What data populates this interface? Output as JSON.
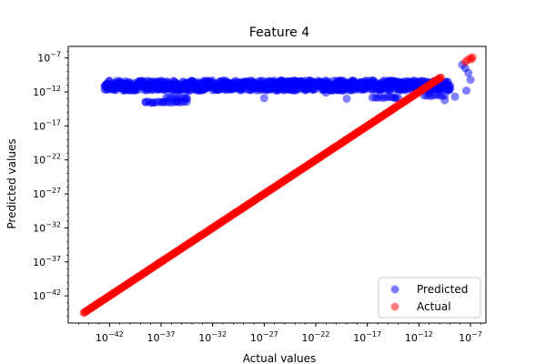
{
  "chart_data": {
    "type": "scatter",
    "title": "Feature 4",
    "xlabel": "Actual values",
    "ylabel": "Predicted values",
    "xscale": "log",
    "yscale": "log",
    "xlim_exp": [
      -46,
      -5.5
    ],
    "ylim_exp": [
      -46,
      -5.3
    ],
    "xticks": [
      {
        "exp": -42,
        "base": "10",
        "sup": "−42"
      },
      {
        "exp": -37,
        "base": "10",
        "sup": "−37"
      },
      {
        "exp": -32,
        "base": "10",
        "sup": "−32"
      },
      {
        "exp": -27,
        "base": "10",
        "sup": "−27"
      },
      {
        "exp": -22,
        "base": "10",
        "sup": "−22"
      },
      {
        "exp": -17,
        "base": "10",
        "sup": "−17"
      },
      {
        "exp": -12,
        "base": "10",
        "sup": "−12"
      },
      {
        "exp": -7,
        "base": "10",
        "sup": "−7"
      }
    ],
    "yticks": [
      {
        "exp": -42,
        "base": "10",
        "sup": "−42"
      },
      {
        "exp": -37,
        "base": "10",
        "sup": "−37"
      },
      {
        "exp": -32,
        "base": "10",
        "sup": "−32"
      },
      {
        "exp": -27,
        "base": "10",
        "sup": "−27"
      },
      {
        "exp": -22,
        "base": "10",
        "sup": "−22"
      },
      {
        "exp": -17,
        "base": "10",
        "sup": "−17"
      },
      {
        "exp": -12,
        "base": "10",
        "sup": "−12"
      },
      {
        "exp": -7,
        "base": "10",
        "sup": "−7"
      }
    ],
    "grid": false,
    "legend": {
      "placement": "lower-right",
      "entries": [
        {
          "name": "Predicted",
          "color": "#0000ff"
        },
        {
          "name": "Actual",
          "color": "#ff0000"
        }
      ]
    },
    "series": [
      {
        "name": "Predicted",
        "color": "#0000ff",
        "alpha": 0.5,
        "points": [
          [
            -41,
            -11
          ],
          [
            -40,
            -11.8
          ],
          [
            -39,
            -10.4
          ],
          [
            -38,
            -11.2
          ],
          [
            -37.5,
            -10.6
          ],
          [
            -36.5,
            -11.5
          ],
          [
            -36,
            -10.8
          ],
          [
            -35,
            -11.1
          ],
          [
            -34,
            -10.5
          ],
          [
            -33,
            -11.6
          ],
          [
            -32,
            -10.9
          ],
          [
            -31,
            -11.3
          ],
          [
            -30,
            -10.7
          ],
          [
            -29,
            -11.4
          ],
          [
            -28,
            -10.6
          ],
          [
            -27,
            -12.9
          ],
          [
            -26,
            -11.0
          ],
          [
            -25,
            -10.5
          ],
          [
            -24,
            -11.7
          ],
          [
            -23,
            -10.8
          ],
          [
            -22,
            -11.2
          ],
          [
            -21,
            -12.1
          ],
          [
            -20,
            -10.6
          ],
          [
            -19,
            -13.0
          ],
          [
            -18,
            -11.4
          ],
          [
            -17,
            -10.7
          ],
          [
            -16,
            -11.1
          ],
          [
            -15,
            -10.5
          ],
          [
            -14,
            -11.6
          ],
          [
            -13,
            -10.9
          ],
          [
            -12,
            -11.2
          ],
          [
            -11,
            -12.0
          ],
          [
            -10,
            -10.6
          ],
          [
            -9.5,
            -13.2
          ],
          [
            -8.5,
            -12.7
          ],
          [
            -7.5,
            -8.5
          ],
          [
            -7.2,
            -9.2
          ],
          [
            -7.0,
            -10.2
          ],
          [
            -7.4,
            -11.8
          ],
          [
            -7.8,
            -8.0
          ],
          [
            -38.5,
            -13.5
          ],
          [
            -37.8,
            -13.6
          ],
          [
            -36.8,
            -13.5
          ],
          [
            -35.5,
            -13.4
          ],
          [
            -34.5,
            -12.9
          ],
          [
            -14.3,
            -12.9
          ]
        ],
        "band": {
          "x_range": [
            -42.5,
            -9
          ],
          "y_main_range": [
            -11.8,
            -10.3
          ],
          "lower_segments": [
            {
              "x_range": [
                -38.5,
                -34.3
              ],
              "y": -13.5
            },
            {
              "x_range": [
                -36.5,
                -34.3
              ],
              "y": -12.9
            },
            {
              "x_range": [
                -16.5,
                -14.0
              ],
              "y": -12.8
            },
            {
              "x_range": [
                -11.5,
                -9.5
              ],
              "y": -12.5
            }
          ]
        }
      },
      {
        "name": "Actual",
        "color": "#ff0000",
        "alpha": 0.5,
        "line_x_range": [
          -44.5,
          -9.8
        ],
        "cluster": [
          [
            -7.3,
            -7.3
          ],
          [
            -7.0,
            -7.0
          ],
          [
            -6.8,
            -6.9
          ],
          [
            -7.5,
            -7.6
          ],
          [
            -6.9,
            -7.2
          ]
        ]
      }
    ]
  }
}
